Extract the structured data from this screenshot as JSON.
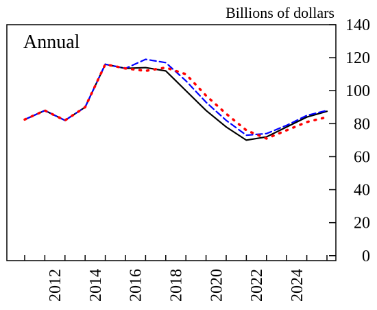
{
  "chart_data": {
    "type": "line",
    "unit_label": "Billions of dollars",
    "annotation": "Annual",
    "categories": [
      null,
      "2012",
      null,
      "2014",
      null,
      "2016",
      null,
      "2018",
      null,
      "2020",
      null,
      "2022",
      null,
      "2024",
      null,
      null
    ],
    "series": [
      {
        "color": "#000000",
        "style": "solid",
        "values": [
          82.5,
          88,
          82,
          90,
          116,
          113.5,
          114,
          112,
          100,
          88,
          78,
          70,
          72,
          78,
          84,
          87.5
        ]
      },
      {
        "color": "#0000ff",
        "style": "dashed",
        "values": [
          82.5,
          88,
          82,
          90,
          116,
          113.5,
          119,
          117,
          106,
          93,
          82,
          73,
          74,
          79,
          85,
          88
        ]
      },
      {
        "color": "#ff0000",
        "style": "dotted",
        "values": [
          82.5,
          88,
          82,
          90,
          116,
          113.5,
          112,
          114,
          110,
          97,
          86,
          76,
          71,
          76,
          81,
          84
        ]
      }
    ],
    "ylim": [
      -3,
      140
    ],
    "yticks": [
      0,
      20,
      40,
      60,
      80,
      100,
      120,
      140
    ],
    "y_axis_side": "right"
  }
}
